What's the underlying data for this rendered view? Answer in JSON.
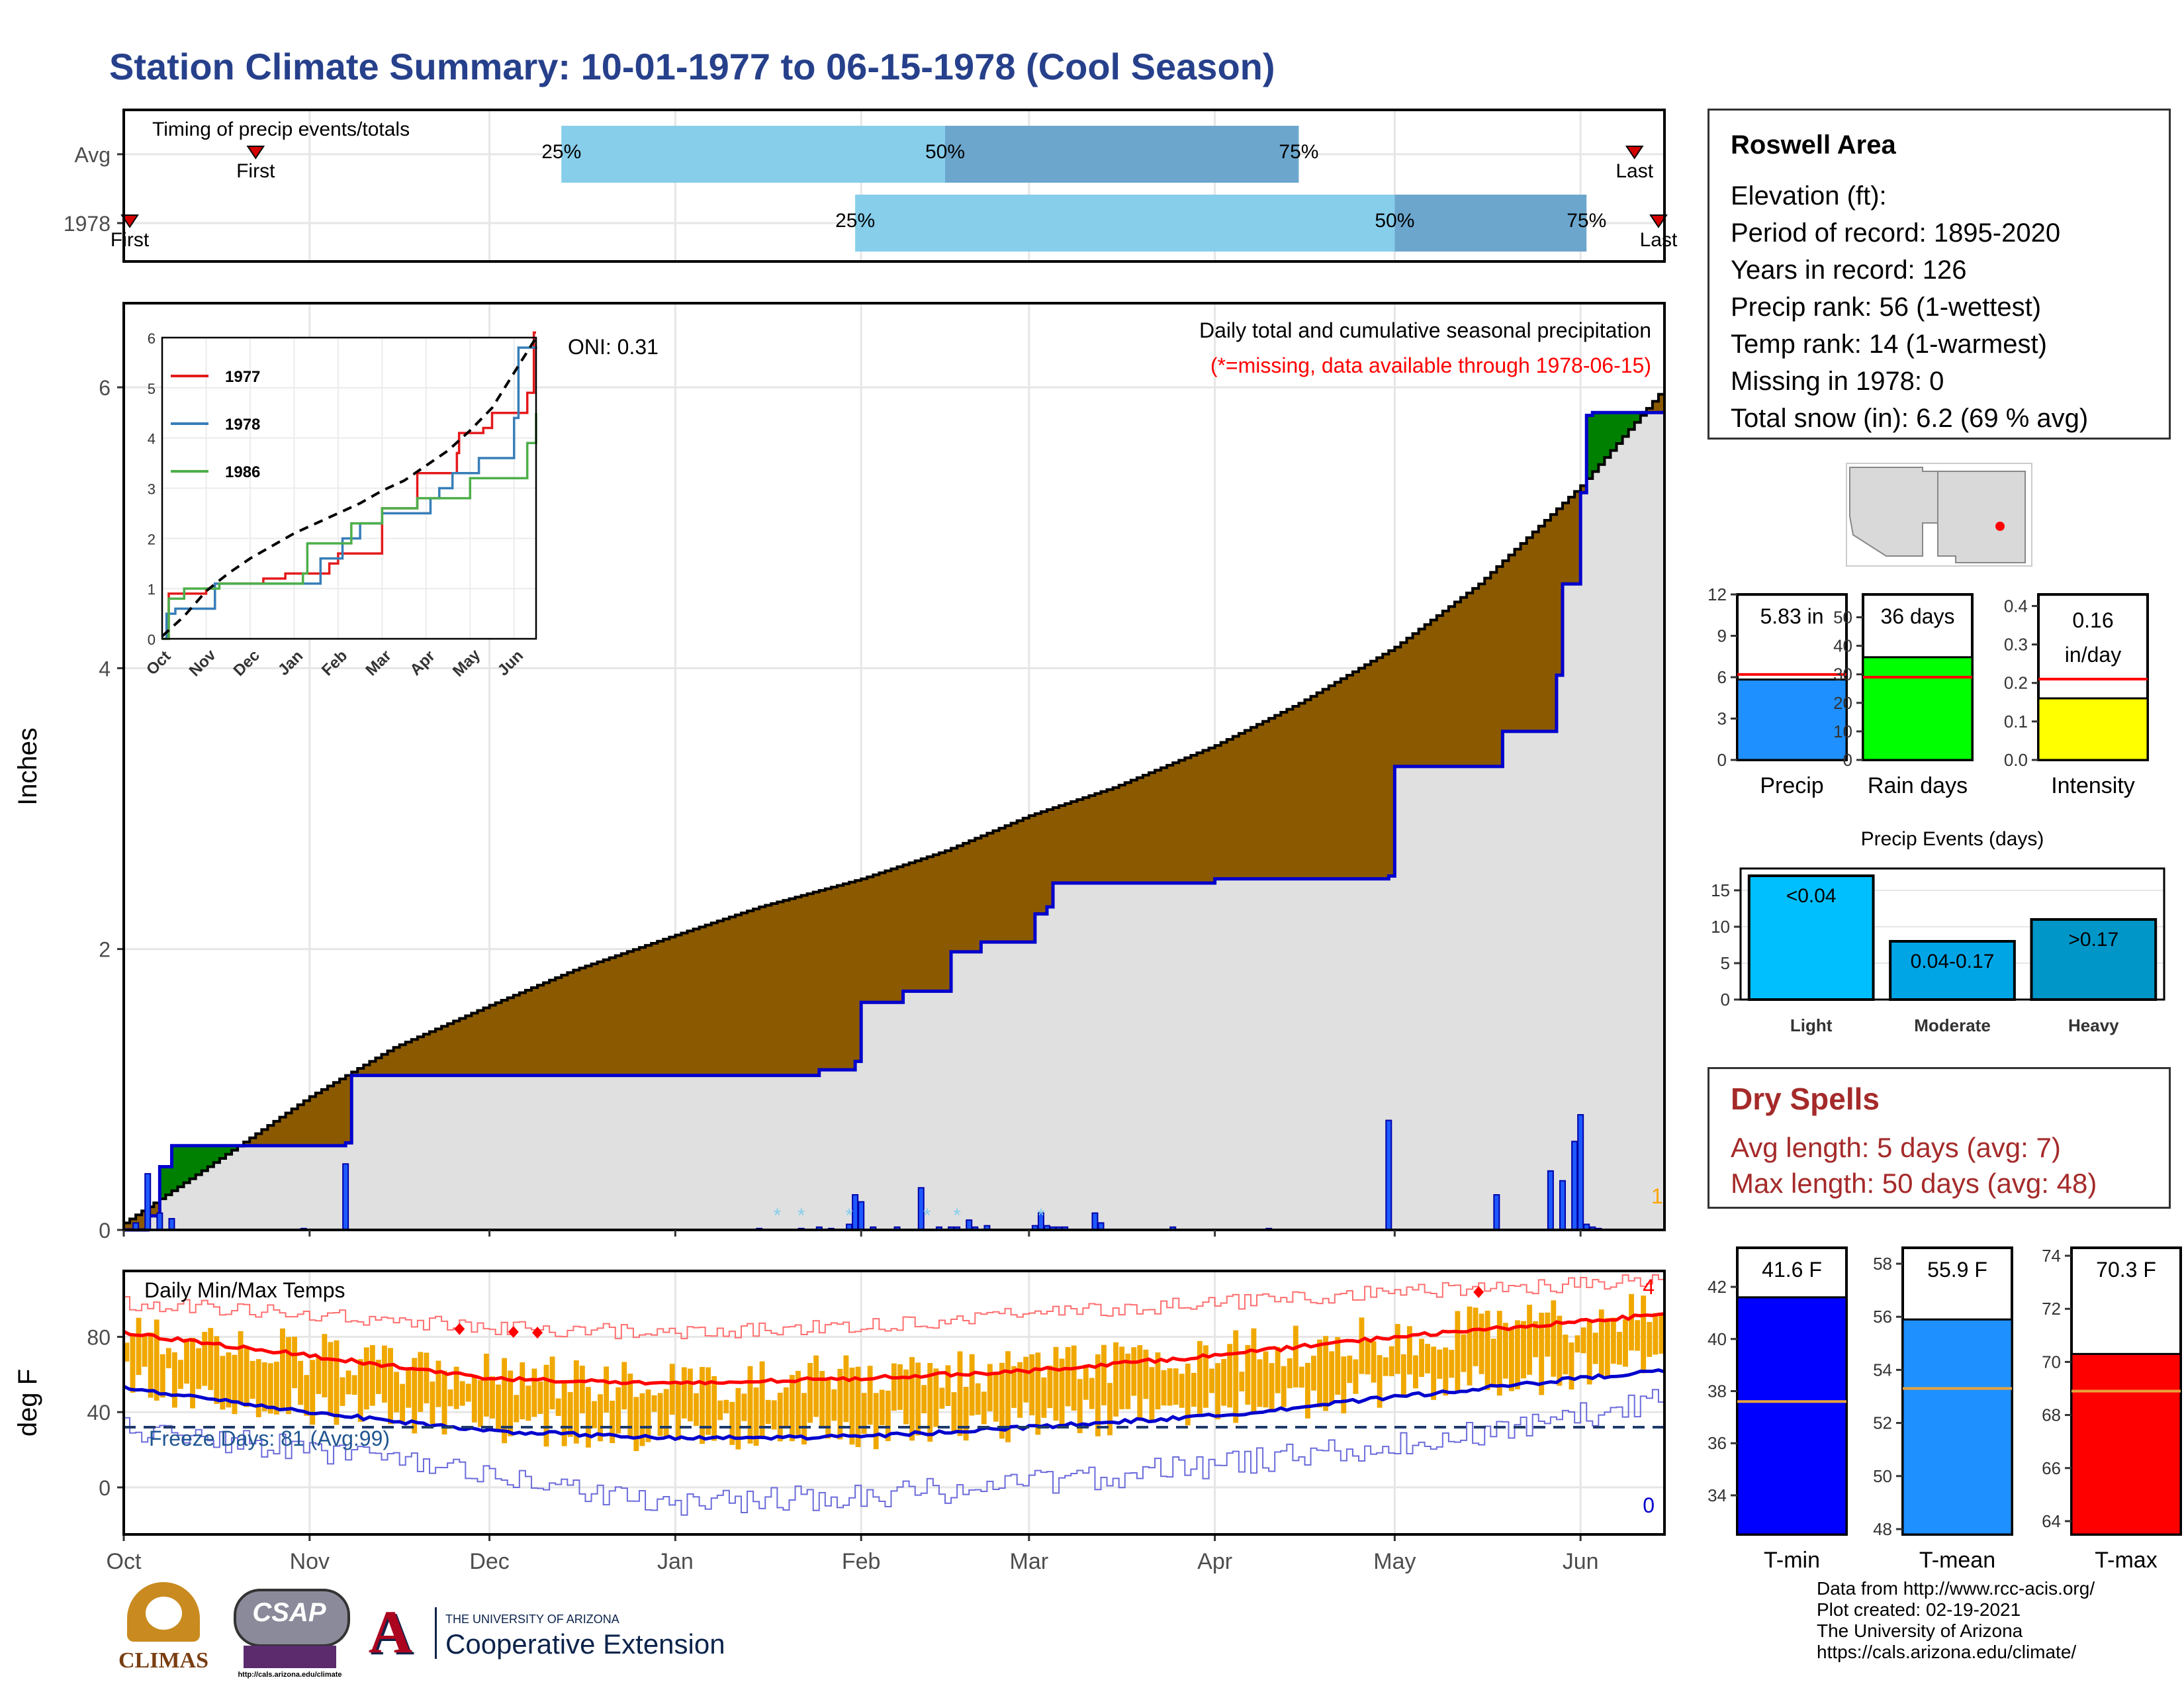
{
  "page": {
    "title": "Station Climate Summary: 10-01-1977 to 06-15-1978 (Cool Season)"
  },
  "station": {
    "name": "Roswell Area",
    "lines": [
      "Elevation (ft):",
      "Period of record: 1895-2020",
      "Years in record: 126",
      "Precip rank: 56 (1-wettest)",
      "Temp rank: 14 (1-warmest)",
      "Missing in 1978: 0",
      "Total snow (in): 6.2 (69 % avg)"
    ]
  },
  "dry_spells": {
    "title": "Dry Spells",
    "avg_length": "Avg length: 5 days (avg: 7)",
    "max_length": "Max length: 50 days (avg: 48)"
  },
  "credits": {
    "lines": [
      "Data from http://www.rcc-acis.org/",
      "Plot created: 02-19-2021",
      "The University of Arizona",
      "https://cals.arizona.edu/climate/"
    ]
  },
  "logos": {
    "climas": "CLIMAS",
    "csap": "CSAP",
    "csap_url": "http://cals.arizona.edu/climate",
    "ua_line1": "THE UNIVERSITY OF ARIZONA",
    "ua_line2": "Cooperative Extension"
  },
  "chart_data": [
    {
      "type": "bar",
      "id": "timing",
      "title": "Timing of precip events/totals",
      "categories": [
        "Avg",
        "1978"
      ],
      "x_range": [
        "1977-10-01",
        "1978-06-15"
      ],
      "series": [
        {
          "name": "Avg",
          "first": "1977-10-23",
          "q25": "1977-12-13",
          "q50": "1978-02-15",
          "q75": "1978-04-15",
          "last": "1978-06-10",
          "labels": [
            "First",
            "25%",
            "50%",
            "75%",
            "Last"
          ]
        },
        {
          "name": "1978",
          "first": "1977-10-02",
          "q25": "1978-01-31",
          "q50": "1978-05-01",
          "q75": "1978-06-02",
          "last": "1978-06-14",
          "labels": [
            "First",
            "25%",
            "50%",
            "75%",
            "Last"
          ]
        }
      ],
      "colors": {
        "light": "#87ceeb",
        "dark": "#6ca6cd",
        "marker": "#d40000"
      }
    },
    {
      "type": "area",
      "id": "cumulative-precip",
      "title": "Daily total and cumulative seasonal precipitation",
      "subtitle": "(*=missing, data available through 1978-06-15)",
      "annotation": "ONI: 0.31",
      "ylabel": "Inches",
      "ylim": [
        0,
        6.5
      ],
      "y_ticks": [
        0,
        2,
        4,
        6
      ],
      "x_ticks": [
        "Oct",
        "Nov",
        "Dec",
        "Jan",
        "Feb",
        "Mar",
        "Apr",
        "May",
        "Jun"
      ],
      "corner_label": "1",
      "avg_cumulative": {
        "x": [
          "1977-10-01",
          "1977-10-15",
          "1977-11-01",
          "1977-11-15",
          "1977-12-01",
          "1977-12-15",
          "1978-01-01",
          "1978-01-15",
          "1978-02-01",
          "1978-02-15",
          "1978-03-01",
          "1978-03-15",
          "1978-04-01",
          "1978-04-15",
          "1978-05-01",
          "1978-05-15",
          "1978-06-01",
          "1978-06-15"
        ],
        "y": [
          0.05,
          0.45,
          0.95,
          1.3,
          1.6,
          1.85,
          2.1,
          2.3,
          2.5,
          2.7,
          2.95,
          3.15,
          3.45,
          3.75,
          4.15,
          4.6,
          5.3,
          6.0
        ]
      },
      "year_cumulative": {
        "x": [
          "1977-10-01",
          "1977-10-05",
          "1977-10-07",
          "1977-10-09",
          "1977-11-01",
          "1977-11-07",
          "1977-11-08",
          "1978-01-15",
          "1978-01-25",
          "1978-01-31",
          "1978-02-01",
          "1978-02-07",
          "1978-02-08",
          "1978-02-15",
          "1978-02-16",
          "1978-02-20",
          "1978-02-21",
          "1978-03-01",
          "1978-03-02",
          "1978-03-04",
          "1978-03-05",
          "1978-04-01",
          "1978-04-30",
          "1978-05-01",
          "1978-05-18",
          "1978-05-19",
          "1978-05-27",
          "1978-05-28",
          "1978-05-29",
          "1978-05-30",
          "1978-06-01",
          "1978-06-02",
          "1978-06-03",
          "1978-06-15"
        ],
        "y": [
          0,
          0.1,
          0.45,
          0.6,
          0.6,
          0.62,
          1.1,
          1.1,
          1.14,
          1.2,
          1.62,
          1.62,
          1.7,
          1.7,
          1.98,
          1.98,
          2.05,
          2.05,
          2.25,
          2.3,
          2.47,
          2.5,
          2.52,
          3.3,
          3.3,
          3.55,
          3.55,
          3.95,
          4.6,
          4.6,
          5.25,
          5.8,
          5.82,
          5.82
        ]
      },
      "daily_bars": {
        "x": [
          "1977-10-03",
          "1977-10-05",
          "1977-10-07",
          "1977-10-09",
          "1977-10-31",
          "1977-11-07",
          "1978-01-15",
          "1978-01-22",
          "1978-01-25",
          "1978-01-27",
          "1978-01-30",
          "1978-01-31",
          "1978-02-01",
          "1978-02-03",
          "1978-02-07",
          "1978-02-11",
          "1978-02-14",
          "1978-02-16",
          "1978-02-17",
          "1978-02-19",
          "1978-02-20",
          "1978-02-22",
          "1978-03-02",
          "1978-03-03",
          "1978-03-04",
          "1978-03-05",
          "1978-03-06",
          "1978-03-07",
          "1978-03-12",
          "1978-03-13",
          "1978-03-25",
          "1978-04-10",
          "1978-04-30",
          "1978-05-18",
          "1978-05-27",
          "1978-05-29",
          "1978-05-31",
          "1978-06-01",
          "1978-06-02",
          "1978-06-03",
          "1978-06-04"
        ],
        "y": [
          0.05,
          0.4,
          0.12,
          0.08,
          0.01,
          0.47,
          0.01,
          0.01,
          0.02,
          0.01,
          0.04,
          0.25,
          0.2,
          0.02,
          0.02,
          0.3,
          0.02,
          0.02,
          0.02,
          0.07,
          0.02,
          0.03,
          0.03,
          0.12,
          0.03,
          0.02,
          0.02,
          0.02,
          0.12,
          0.05,
          0.02,
          0.01,
          0.78,
          0.25,
          0.42,
          0.35,
          0.63,
          0.82,
          0.04,
          0.02,
          0.01
        ]
      },
      "snow_marks": [
        "1978-01-18",
        "1978-01-22",
        "1978-01-30",
        "1978-02-12",
        "1978-02-17",
        "1978-03-03"
      ],
      "colors": {
        "deficit": "#8b5a00",
        "surplus": "#008000",
        "year_line": "#0000cd",
        "fill": "#e0e0e0",
        "bars": "#1e5aff"
      }
    },
    {
      "type": "line",
      "id": "analog-inset",
      "series": [
        {
          "name": "1977",
          "color": "#e41a1c",
          "x": [
            0,
            0.12,
            0.15,
            1.0,
            1.2,
            2.0,
            2.3,
            2.8,
            3.8,
            4.0,
            4.9,
            5.0,
            5.7,
            5.8,
            6.2,
            6.7,
            6.75,
            7.3,
            7.5,
            8.0,
            8.3,
            8.45,
            8.5
          ],
          "y": [
            0,
            0,
            0.9,
            1.0,
            1.1,
            1.1,
            1.2,
            1.3,
            1.5,
            1.7,
            1.7,
            2.6,
            2.6,
            3.3,
            3.3,
            3.7,
            4.1,
            4.2,
            4.5,
            4.5,
            4.9,
            6.1,
            6.1
          ]
        },
        {
          "name": "1978",
          "color": "#377eb8",
          "x": [
            0,
            0.1,
            0.3,
            1.1,
            1.2,
            3.5,
            3.6,
            4.0,
            4.1,
            4.4,
            4.5,
            5.0,
            5.5,
            6.1,
            6.3,
            6.6,
            6.9,
            7.2,
            7.5,
            8.0,
            8.1,
            8.4,
            8.5
          ],
          "y": [
            0,
            0.5,
            0.6,
            0.6,
            1.1,
            1.1,
            1.6,
            1.6,
            2.0,
            2.0,
            2.3,
            2.5,
            2.5,
            2.8,
            3.0,
            3.3,
            3.3,
            3.6,
            3.6,
            4.4,
            5.8,
            5.8,
            5.82
          ]
        },
        {
          "name": "1986",
          "color": "#4daf4a",
          "x": [
            0,
            0.15,
            0.5,
            0.9,
            1.3,
            2.5,
            3.2,
            3.3,
            4.1,
            4.3,
            4.8,
            5.0,
            5.5,
            5.8,
            6.5,
            7.0,
            7.2,
            8.2,
            8.3,
            8.5
          ],
          "y": [
            0,
            0.8,
            1.0,
            1.0,
            1.1,
            1.1,
            1.3,
            1.9,
            1.9,
            2.3,
            2.3,
            2.6,
            2.6,
            2.8,
            2.8,
            3.2,
            3.2,
            3.2,
            3.9,
            4.5
          ]
        },
        {
          "name": "avg",
          "color": "#000000",
          "dashed": true,
          "x": [
            0,
            0.5,
            1.0,
            1.5,
            2.0,
            2.5,
            3.0,
            3.5,
            4.0,
            4.5,
            5.0,
            5.5,
            6.0,
            6.5,
            7.0,
            7.5,
            8.0,
            8.5
          ],
          "y": [
            0.05,
            0.45,
            0.95,
            1.3,
            1.6,
            1.85,
            2.1,
            2.3,
            2.5,
            2.7,
            2.95,
            3.15,
            3.45,
            3.75,
            4.15,
            4.6,
            5.3,
            6.0
          ]
        }
      ],
      "x_ticks": [
        "Oct",
        "Nov",
        "Dec",
        "Jan",
        "Feb",
        "Mar",
        "Apr",
        "May",
        "Jun"
      ],
      "y_ticks": [
        0,
        1,
        2,
        3,
        4,
        5,
        6
      ],
      "ylim": [
        0,
        6
      ]
    },
    {
      "type": "line",
      "id": "daily-temps",
      "title": "Daily Min/Max Temps",
      "ylabel": "deg F",
      "y_ticks": [
        0,
        40,
        80
      ],
      "ylim": [
        -25,
        115
      ],
      "x_ticks": [
        "Oct",
        "Nov",
        "Dec",
        "Jan",
        "Feb",
        "Mar",
        "Apr",
        "May",
        "Jun"
      ],
      "freeze_label": "Freeze Days: 81 (Avg:99)",
      "freeze_line": 32,
      "record_high_count": "4",
      "record_low_count": "0",
      "avg_max": {
        "x": [
          "1977-10-01",
          "1977-11-01",
          "1977-12-01",
          "1978-01-01",
          "1978-02-01",
          "1978-03-01",
          "1978-04-01",
          "1978-05-01",
          "1978-06-01",
          "1978-06-15"
        ],
        "y": [
          82,
          70,
          58,
          55,
          58,
          62,
          70,
          80,
          88,
          92
        ]
      },
      "avg_min": {
        "x": [
          "1977-10-01",
          "1977-11-01",
          "1977-12-01",
          "1978-01-01",
          "1978-02-01",
          "1978-03-01",
          "1978-04-01",
          "1978-05-01",
          "1978-06-01",
          "1978-06-15"
        ],
        "y": [
          53,
          40,
          30,
          26,
          27,
          32,
          38,
          48,
          58,
          62
        ]
      },
      "record_max": {
        "x": [
          "1977-10-01",
          "1977-11-01",
          "1977-12-01",
          "1978-01-01",
          "1978-02-01",
          "1978-03-01",
          "1978-04-01",
          "1978-05-01",
          "1978-06-01",
          "1978-06-15"
        ],
        "y": [
          98,
          92,
          85,
          82,
          86,
          92,
          98,
          104,
          108,
          110
        ]
      },
      "record_min": {
        "x": [
          "1977-10-01",
          "1977-11-01",
          "1977-12-01",
          "1978-01-01",
          "1978-02-01",
          "1978-03-01",
          "1978-04-01",
          "1978-05-01",
          "1978-06-01",
          "1978-06-15"
        ],
        "y": [
          32,
          20,
          5,
          -8,
          -5,
          2,
          12,
          22,
          38,
          48
        ]
      },
      "record_high_days": [
        "1977-11-26",
        "1977-12-05",
        "1977-12-09",
        "1978-05-15"
      ],
      "colors": {
        "bars": "#f0a800",
        "avg_max": "#ff0000",
        "avg_min": "#0000cd",
        "rec_max": "#ff6f6f",
        "rec_min": "#6b6bdb"
      }
    },
    {
      "type": "bar",
      "id": "summary-precip",
      "panels": [
        {
          "category": "Precip",
          "value": 5.83,
          "label": "5.83 in",
          "avg": 6.2,
          "ylim": [
            0,
            12
          ],
          "y_ticks": [
            0,
            3,
            6,
            9,
            12
          ],
          "color": "#1e90ff",
          "avg_color": "#ff0000"
        },
        {
          "category": "Rain days",
          "value": 36,
          "label": "36 days",
          "avg": 29,
          "ylim": [
            0,
            58
          ],
          "y_ticks": [
            0,
            10,
            20,
            30,
            40,
            50
          ],
          "color": "#00ff00",
          "avg_color": "#ff0000"
        },
        {
          "category": "Intensity",
          "value": 0.16,
          "label": "0.16 in/day",
          "avg": 0.21,
          "ylim": [
            0,
            0.43
          ],
          "y_ticks": [
            0.0,
            0.1,
            0.2,
            0.3,
            0.4
          ],
          "color": "#ffff00",
          "avg_color": "#ff0000"
        }
      ]
    },
    {
      "type": "bar",
      "id": "precip-events",
      "title": "Precip Events (days)",
      "categories": [
        "Light",
        "Moderate",
        "Heavy"
      ],
      "values": [
        17,
        8,
        11
      ],
      "bar_labels": [
        "<0.04",
        "0.04-0.17",
        ">0.17"
      ],
      "ylim": [
        0,
        18
      ],
      "y_ticks": [
        0,
        5,
        10,
        15
      ],
      "colors": [
        "#00bfff",
        "#00a5e6",
        "#0096c8"
      ]
    },
    {
      "type": "bar",
      "id": "summary-temps",
      "panels": [
        {
          "category": "T-min",
          "value": 41.6,
          "label": "41.6 F",
          "avg": 37.6,
          "ylim": [
            32.5,
            43.5
          ],
          "y_ticks": [
            34,
            36,
            38,
            40,
            42
          ],
          "color": "#0000ff",
          "avg_color": "#e8a33a"
        },
        {
          "category": "T-mean",
          "value": 55.9,
          "label": "55.9 F",
          "avg": 53.3,
          "ylim": [
            47.8,
            58.6
          ],
          "y_ticks": [
            48,
            50,
            52,
            54,
            56,
            58
          ],
          "color": "#1e90ff",
          "avg_color": "#e8a33a"
        },
        {
          "category": "T-max",
          "value": 70.3,
          "label": "70.3 F",
          "avg": 68.9,
          "ylim": [
            63.5,
            74.3
          ],
          "y_ticks": [
            64,
            66,
            68,
            70,
            72,
            74
          ],
          "color": "#ff0000",
          "avg_color": "#e8a33a"
        }
      ]
    }
  ]
}
